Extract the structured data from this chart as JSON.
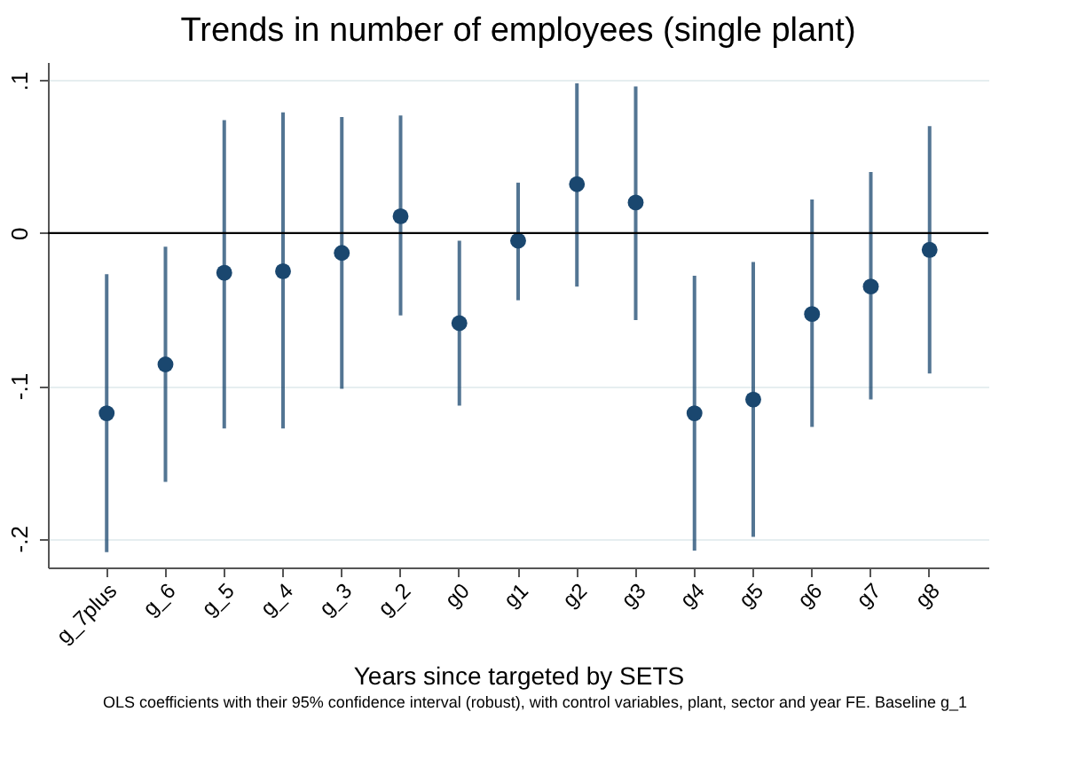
{
  "chart_data": {
    "type": "scatter",
    "title": "Trends in number of employees (single plant)",
    "xlabel": "Years since targeted by SETS",
    "annotations": [
      "OLS coefficients with their 95% confidence interval (robust), with control variables, plant, sector and year FE. Baseline g_1"
    ],
    "categories": [
      "g_7plus",
      "g_6",
      "g_5",
      "g_4",
      "g_3",
      "g_2",
      "g0",
      "g1",
      "g2",
      "g3",
      "g4",
      "g5",
      "g6",
      "g7",
      "g8"
    ],
    "series": [
      {
        "color": "#1a476f",
        "values": [
          -0.118,
          -0.086,
          -0.026,
          -0.025,
          -0.013,
          0.011,
          -0.059,
          -0.005,
          0.032,
          0.02,
          -0.118,
          -0.109,
          -0.053,
          -0.035,
          -0.011
        ],
        "errors": [
          [
            -0.209,
            -0.027
          ],
          [
            -0.163,
            -0.009
          ],
          [
            -0.128,
            0.074
          ],
          [
            -0.128,
            0.079
          ],
          [
            -0.102,
            0.076
          ],
          [
            -0.054,
            0.077
          ],
          [
            -0.113,
            -0.005
          ],
          [
            -0.044,
            0.033
          ],
          [
            -0.035,
            0.098
          ],
          [
            -0.057,
            0.096
          ],
          [
            -0.208,
            -0.028
          ],
          [
            -0.199,
            -0.019
          ],
          [
            -0.127,
            0.022
          ],
          [
            -0.109,
            0.04
          ],
          [
            -0.092,
            0.07
          ]
        ]
      }
    ],
    "ylim": [
      -0.219,
      0.112
    ],
    "yticks": [
      {
        "value": -0.2,
        "label": "-.2"
      },
      {
        "value": -0.1,
        "label": "-.1"
      },
      0,
      {
        "value": 0.1,
        "label": ".1"
      }
    ],
    "ref_lines": [
      {
        "axis": "y",
        "value": 0,
        "color": "#000000"
      }
    ],
    "grid": "y",
    "marker": "circle"
  }
}
